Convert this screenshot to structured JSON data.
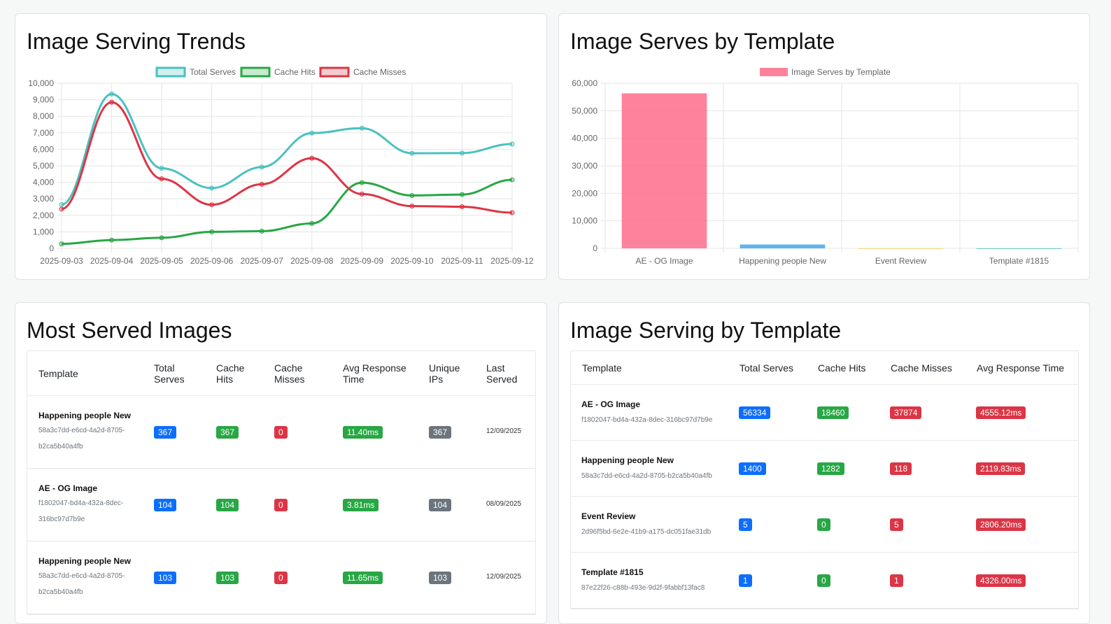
{
  "trends": {
    "title": "Image Serving Trends",
    "chart_data": {
      "type": "line",
      "x": [
        "2025-09-03",
        "2025-09-04",
        "2025-09-05",
        "2025-09-06",
        "2025-09-07",
        "2025-09-08",
        "2025-09-09",
        "2025-09-10",
        "2025-09-11",
        "2025-09-12"
      ],
      "ylim": [
        0,
        10000
      ],
      "yticks": [
        "0",
        "1,000",
        "2,000",
        "3,000",
        "4,000",
        "5,000",
        "6,000",
        "7,000",
        "8,000",
        "9,000",
        "10,000"
      ],
      "legend_position": "top",
      "grid": true,
      "series": [
        {
          "name": "Total Serves",
          "color": "#4bc0c0",
          "values": [
            2650,
            9350,
            4850,
            3650,
            4920,
            6980,
            7280,
            5760,
            5770,
            6320
          ]
        },
        {
          "name": "Cache Hits",
          "color": "#28a745",
          "values": [
            270,
            500,
            640,
            1000,
            1040,
            1510,
            3980,
            3200,
            3260,
            4150
          ]
        },
        {
          "name": "Cache Misses",
          "color": "#dc3545",
          "values": [
            2380,
            8850,
            4210,
            2640,
            3880,
            5460,
            3290,
            2560,
            2520,
            2160
          ]
        }
      ]
    }
  },
  "by_template_chart": {
    "title": "Image Serves by Template",
    "chart_data": {
      "type": "bar",
      "categories": [
        "AE - OG Image",
        "Happening people New",
        "Event Review",
        "Template #1815"
      ],
      "values": [
        56334,
        1400,
        5,
        1
      ],
      "ylim": [
        0,
        60000
      ],
      "yticks": [
        "0",
        "10,000",
        "20,000",
        "30,000",
        "40,000",
        "50,000",
        "60,000"
      ],
      "legend": "Image Serves by Template",
      "legend_position": "top",
      "grid": true,
      "colors": [
        "#ff6384",
        "#36a2eb",
        "#ffce56",
        "#4bc0c0"
      ]
    }
  },
  "most_served": {
    "title": "Most Served Images",
    "headers": [
      "Template",
      "Total\nServes",
      "Cache\nHits",
      "Cache\nMisses",
      "Avg Response\nTime",
      "Unique\nIPs",
      "Last\nServed"
    ],
    "rows": [
      {
        "name": "Happening people New",
        "id1": "58a3c7dd-e6cd-4a2d-8705-",
        "id2": "b2ca5b40a4fb",
        "total": "367",
        "hits": "367",
        "misses": "0",
        "avg": "11.40ms",
        "ips": "367",
        "last": "12/09/2025"
      },
      {
        "name": "AE - OG Image",
        "id1": "f1802047-bd4a-432a-8dec-",
        "id2": "316bc97d7b9e",
        "total": "104",
        "hits": "104",
        "misses": "0",
        "avg": "3.81ms",
        "ips": "104",
        "last": "08/09/2025"
      },
      {
        "name": "Happening people New",
        "id1": "58a3c7dd-e6cd-4a2d-8705-",
        "id2": "b2ca5b40a4fb",
        "total": "103",
        "hits": "103",
        "misses": "0",
        "avg": "11.65ms",
        "ips": "103",
        "last": "12/09/2025"
      }
    ]
  },
  "by_template_table": {
    "title": "Image Serving by Template",
    "headers": [
      "Template",
      "Total Serves",
      "Cache Hits",
      "Cache Misses",
      "Avg Response Time"
    ],
    "rows": [
      {
        "name": "AE - OG Image",
        "id": "f1802047-bd4a-432a-8dec-316bc97d7b9e",
        "total": "56334",
        "hits": "18460",
        "misses": "37874",
        "avg": "4555.12ms"
      },
      {
        "name": "Happening people New",
        "id": "58a3c7dd-e6cd-4a2d-8705-b2ca5b40a4fb",
        "total": "1400",
        "hits": "1282",
        "misses": "118",
        "avg": "2119.83ms"
      },
      {
        "name": "Event Review",
        "id": "2d96f5bd-6e2e-41b9-a175-dc051fae31db",
        "total": "5",
        "hits": "0",
        "misses": "5",
        "avg": "2806.20ms"
      },
      {
        "name": "Template #1815",
        "id": "87e22f26-c88b-493e-9d2f-9fabbf13fac8",
        "total": "1",
        "hits": "0",
        "misses": "1",
        "avg": "4326.00ms"
      }
    ]
  }
}
